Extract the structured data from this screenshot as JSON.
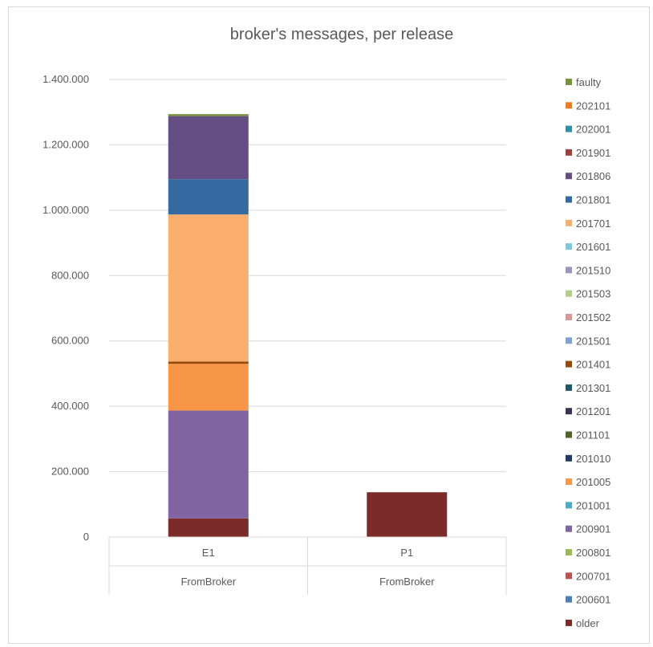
{
  "chart_data": {
    "type": "bar",
    "stacked": true,
    "title": "broker's messages, per release",
    "xlabel": "",
    "ylabel": "",
    "ylim": [
      0,
      1400000
    ],
    "yticks": [
      0,
      200000,
      400000,
      600000,
      800000,
      1000000,
      1200000,
      1400000
    ],
    "ytick_labels": [
      "0",
      "200.000",
      "400.000",
      "600.000",
      "800.000",
      "1.000.000",
      "1.200.000",
      "1.400.000"
    ],
    "categories": [
      "E1",
      "P1"
    ],
    "category_group_labels": [
      "FromBroker",
      "FromBroker"
    ],
    "grid": true,
    "legend_position": "right",
    "series": [
      {
        "name": "older",
        "color": "#7B2C2A",
        "values": [
          57000,
          137000
        ]
      },
      {
        "name": "200601",
        "color": "#4A7EBB",
        "values": [
          0,
          0
        ]
      },
      {
        "name": "200701",
        "color": "#C0504D",
        "values": [
          0,
          0
        ]
      },
      {
        "name": "200801",
        "color": "#9BBB59",
        "values": [
          0,
          0
        ]
      },
      {
        "name": "200901",
        "color": "#8064A2",
        "values": [
          330000,
          0
        ]
      },
      {
        "name": "201001",
        "color": "#4BACC6",
        "values": [
          0,
          0
        ]
      },
      {
        "name": "201005",
        "color": "#F79646",
        "values": [
          143000,
          0
        ]
      },
      {
        "name": "201010",
        "color": "#1F3864",
        "values": [
          0,
          0
        ]
      },
      {
        "name": "201101",
        "color": "#4F6228",
        "values": [
          0,
          0
        ]
      },
      {
        "name": "201201",
        "color": "#3F3151",
        "values": [
          0,
          0
        ]
      },
      {
        "name": "201301",
        "color": "#215868",
        "values": [
          0,
          0
        ]
      },
      {
        "name": "201401",
        "color": "#984807",
        "values": [
          7000,
          0
        ]
      },
      {
        "name": "201501",
        "color": "#7EA1D0",
        "values": [
          0,
          0
        ]
      },
      {
        "name": "201502",
        "color": "#D99694",
        "values": [
          0,
          0
        ]
      },
      {
        "name": "201503",
        "color": "#B3CC8A",
        "values": [
          0,
          0
        ]
      },
      {
        "name": "201510",
        "color": "#A092BC",
        "values": [
          0,
          0
        ]
      },
      {
        "name": "201601",
        "color": "#7DC6DD",
        "values": [
          0,
          0
        ]
      },
      {
        "name": "201701",
        "color": "#F9AE6E",
        "values": [
          450000,
          0
        ]
      },
      {
        "name": "201801",
        "color": "#356AA0",
        "values": [
          108000,
          0
        ]
      },
      {
        "name": "201806",
        "color": "#654E84",
        "values": [
          193000,
          0
        ]
      },
      {
        "name": "201901",
        "color": "#A0403C",
        "values": [
          0,
          0
        ]
      },
      {
        "name": "202001",
        "color": "#2D8FA8",
        "values": [
          0,
          0
        ]
      },
      {
        "name": "202101",
        "color": "#F07C1E",
        "values": [
          0,
          0
        ]
      },
      {
        "name": "faulty",
        "color": "#77933C",
        "values": [
          6000,
          0
        ]
      }
    ]
  },
  "colors": {
    "grid": "#d9d9d9",
    "axis_text": "#595959"
  }
}
